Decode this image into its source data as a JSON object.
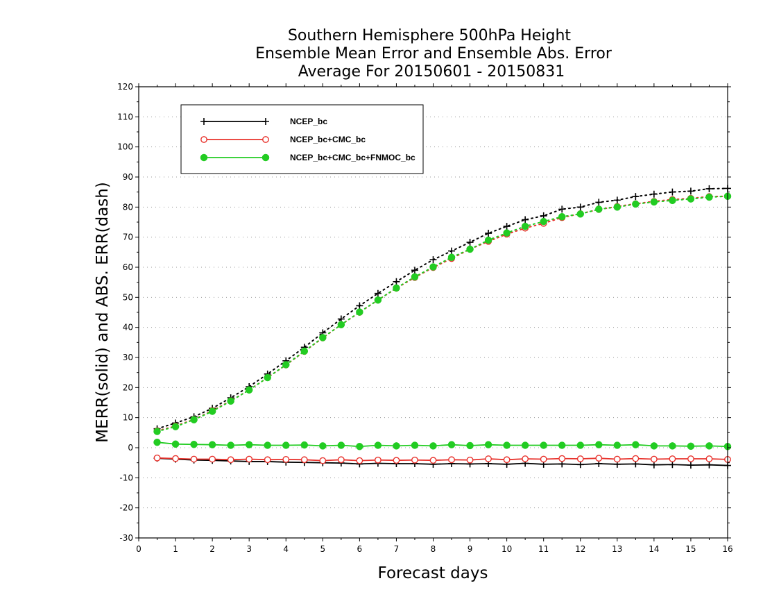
{
  "chart_data": {
    "type": "line",
    "title": [
      "Southern Hemisphere 500hPa Height",
      "Ensemble Mean Error and Ensemble Abs. Error",
      "Average For 20150601 - 20150831"
    ],
    "xlabel": "Forecast days",
    "ylabel": "MERR(solid) and ABS. ERR(dash)",
    "xlim": [
      0,
      16
    ],
    "ylim": [
      -30,
      120
    ],
    "xticks": [
      0,
      1,
      2,
      3,
      4,
      5,
      6,
      7,
      8,
      9,
      10,
      11,
      12,
      13,
      14,
      15,
      16
    ],
    "yticks": [
      -30,
      -20,
      -10,
      0,
      10,
      20,
      30,
      40,
      50,
      60,
      70,
      80,
      90,
      100,
      110,
      120
    ],
    "grid": true,
    "legend_position": "top-left",
    "x": [
      0.5,
      1,
      1.5,
      2,
      2.5,
      3,
      3.5,
      4,
      4.5,
      5,
      5.5,
      6,
      6.5,
      7,
      7.5,
      8,
      8.5,
      9,
      9.5,
      10,
      10.5,
      11,
      11.5,
      12,
      12.5,
      13,
      13.5,
      14,
      14.5,
      15,
      15.5,
      16
    ],
    "series": [
      {
        "name": "NCEP_bc",
        "color": "#000000",
        "marker": "plus",
        "merr": [
          -3.5,
          -3.8,
          -4.1,
          -4.2,
          -4.4,
          -4.6,
          -4.6,
          -4.8,
          -4.9,
          -5.0,
          -5.1,
          -5.4,
          -5.2,
          -5.3,
          -5.3,
          -5.5,
          -5.3,
          -5.4,
          -5.3,
          -5.5,
          -5.2,
          -5.5,
          -5.4,
          -5.6,
          -5.3,
          -5.5,
          -5.4,
          -5.7,
          -5.6,
          -5.8,
          -5.7,
          -5.9
        ],
        "abs_err": [
          6.3,
          8.2,
          10.3,
          13.1,
          16.6,
          20.3,
          24.5,
          28.9,
          33.4,
          38.2,
          42.8,
          47.2,
          51.3,
          55.2,
          59.0,
          62.5,
          65.4,
          68.3,
          71.3,
          73.6,
          75.8,
          77.1,
          79.3,
          80.0,
          81.6,
          82.3,
          83.5,
          84.3,
          85.0,
          85.3,
          86.1,
          86.2
        ]
      },
      {
        "name": "NCEP_bc+CMC_bc",
        "color": "#e8322c",
        "marker": "open-circle",
        "merr": [
          -3.4,
          -3.6,
          -3.8,
          -3.8,
          -4.0,
          -3.8,
          -4.0,
          -3.9,
          -4.0,
          -4.3,
          -4.0,
          -4.3,
          -4.1,
          -4.2,
          -4.1,
          -4.2,
          -4.0,
          -4.1,
          -3.7,
          -4.0,
          -3.7,
          -3.8,
          -3.6,
          -3.7,
          -3.5,
          -3.8,
          -3.6,
          -3.8,
          -3.7,
          -3.7,
          -3.7,
          -3.9
        ],
        "abs_err": [
          5.6,
          7.2,
          9.4,
          12.3,
          15.6,
          19.2,
          23.3,
          27.5,
          32.0,
          36.5,
          40.9,
          45.0,
          49.1,
          53.0,
          56.6,
          59.9,
          62.9,
          66.0,
          68.6,
          71.0,
          73.0,
          74.6,
          76.5,
          77.8,
          79.2,
          80.2,
          81.1,
          81.9,
          82.5,
          82.9,
          83.5,
          83.6
        ]
      },
      {
        "name": "NCEP_bc+CMC_bc+FNMOC_bc",
        "color": "#22cc22",
        "marker": "filled-circle",
        "merr": [
          1.8,
          1.2,
          1.1,
          1.0,
          0.8,
          1.0,
          0.8,
          0.8,
          0.9,
          0.6,
          0.8,
          0.4,
          0.8,
          0.6,
          0.8,
          0.6,
          1.0,
          0.7,
          1.0,
          0.8,
          0.8,
          0.8,
          0.8,
          0.8,
          1.0,
          0.8,
          1.0,
          0.6,
          0.6,
          0.5,
          0.6,
          0.4
        ],
        "abs_err": [
          5.4,
          7.0,
          9.3,
          12.1,
          15.5,
          19.2,
          23.3,
          27.6,
          32.1,
          36.6,
          40.9,
          45.1,
          49.1,
          53.1,
          56.8,
          60.1,
          63.3,
          66.0,
          69.0,
          71.4,
          73.6,
          75.2,
          76.8,
          77.7,
          79.3,
          80.0,
          81.0,
          81.7,
          82.2,
          82.7,
          83.3,
          83.6
        ]
      }
    ]
  }
}
